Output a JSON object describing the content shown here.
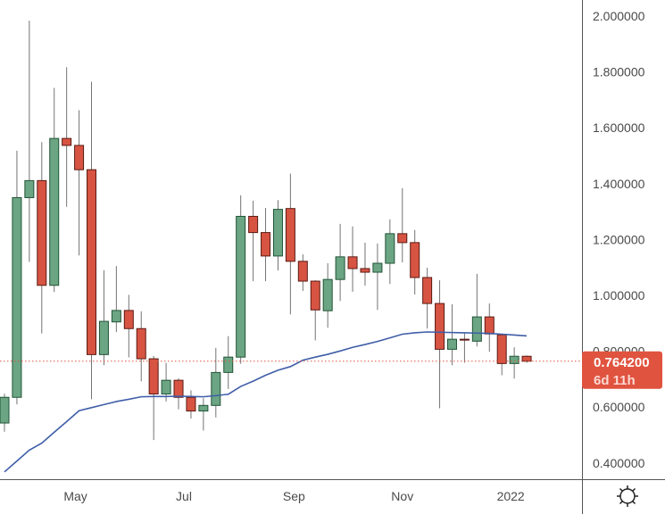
{
  "chart_data": {
    "type": "candlestick",
    "interval": "weekly",
    "start_date": "2021-03-22",
    "yscale": "linear",
    "ylim": [
      0.3418,
      2.0577
    ],
    "yticks": [
      "2.000000",
      "1.800000",
      "1.600000",
      "1.400000",
      "1.200000",
      "1.000000",
      "0.800000",
      "0.600000",
      "0.400000"
    ],
    "xticks": [
      {
        "label": "May",
        "date": "2021-05-01"
      },
      {
        "label": "Jul",
        "date": "2021-07-01"
      },
      {
        "label": "Sep",
        "date": "2021-09-01"
      },
      {
        "label": "Nov",
        "date": "2021-11-01"
      },
      {
        "label": "2022",
        "date": "2022-01-01"
      }
    ],
    "ohlc": [
      [
        0.543,
        0.648,
        0.512,
        0.635
      ],
      [
        0.635,
        1.518,
        0.61,
        1.35
      ],
      [
        1.35,
        1.984,
        1.12,
        1.411
      ],
      [
        1.411,
        1.549,
        0.864,
        1.036
      ],
      [
        1.036,
        1.743,
        1.012,
        1.562
      ],
      [
        1.562,
        1.817,
        1.317,
        1.537
      ],
      [
        1.537,
        1.663,
        1.143,
        1.45
      ],
      [
        1.45,
        1.765,
        0.628,
        0.788
      ],
      [
        0.788,
        1.09,
        0.75,
        0.907
      ],
      [
        0.905,
        1.105,
        0.869,
        0.946
      ],
      [
        0.946,
        1.002,
        0.778,
        0.881
      ],
      [
        0.881,
        0.943,
        0.692,
        0.773
      ],
      [
        0.773,
        0.783,
        0.482,
        0.647
      ],
      [
        0.647,
        0.758,
        0.62,
        0.696
      ],
      [
        0.696,
        0.703,
        0.592,
        0.635
      ],
      [
        0.635,
        0.66,
        0.559,
        0.586
      ],
      [
        0.586,
        0.632,
        0.516,
        0.606
      ],
      [
        0.606,
        0.812,
        0.563,
        0.724
      ],
      [
        0.724,
        0.854,
        0.665,
        0.779
      ],
      [
        0.779,
        1.358,
        0.755,
        1.283
      ],
      [
        1.283,
        1.339,
        1.051,
        1.225
      ],
      [
        1.225,
        1.313,
        1.051,
        1.141
      ],
      [
        1.141,
        1.341,
        1.089,
        1.308
      ],
      [
        1.311,
        1.436,
        0.932,
        1.122
      ],
      [
        1.122,
        1.147,
        1.016,
        1.051
      ],
      [
        1.051,
        1.054,
        0.839,
        0.948
      ],
      [
        0.945,
        1.115,
        0.884,
        1.057
      ],
      [
        1.057,
        1.256,
        0.98,
        1.138
      ],
      [
        1.138,
        1.247,
        1.013,
        1.096
      ],
      [
        1.096,
        1.189,
        1.035,
        1.083
      ],
      [
        1.083,
        1.186,
        0.948,
        1.115
      ],
      [
        1.115,
        1.272,
        1.041,
        1.221
      ],
      [
        1.221,
        1.384,
        1.118,
        1.189
      ],
      [
        1.189,
        1.234,
        1.003,
        1.064
      ],
      [
        1.064,
        1.099,
        0.881,
        0.971
      ],
      [
        0.971,
        1.054,
        0.596,
        0.807
      ],
      [
        0.807,
        0.968,
        0.75,
        0.843
      ],
      [
        0.843,
        0.865,
        0.759,
        0.84
      ],
      [
        0.836,
        1.077,
        0.817,
        0.923
      ],
      [
        0.923,
        0.971,
        0.798,
        0.862
      ],
      [
        0.859,
        0.859,
        0.714,
        0.756
      ],
      [
        0.756,
        0.814,
        0.702,
        0.782
      ],
      [
        0.782,
        0.785,
        0.759,
        0.7642
      ]
    ],
    "moving_average": [
      0.368,
      0.407,
      0.446,
      0.471,
      0.51,
      0.548,
      0.587,
      0.598,
      0.609,
      0.62,
      0.628,
      0.637,
      0.638,
      0.638,
      0.639,
      0.638,
      0.637,
      0.641,
      0.646,
      0.674,
      0.693,
      0.714,
      0.732,
      0.745,
      0.768,
      0.779,
      0.789,
      0.801,
      0.814,
      0.824,
      0.835,
      0.848,
      0.861,
      0.866,
      0.869,
      0.868,
      0.867,
      0.866,
      0.865,
      0.864,
      0.861,
      0.858,
      0.855
    ],
    "last_price": {
      "value": 0.7642,
      "label": "0.764200",
      "countdown": "6d 11h"
    },
    "colors": {
      "up": "#6ba583",
      "up_border": "#225437",
      "down": "#d75442",
      "down_border": "#5b1a13",
      "wick": "#737375",
      "ma": "#3f5ea8",
      "last_price": "#e0533f",
      "axis": "#555555"
    },
    "grid": false
  },
  "toolbar": {
    "settings_icon": "settings-gear-icon"
  }
}
